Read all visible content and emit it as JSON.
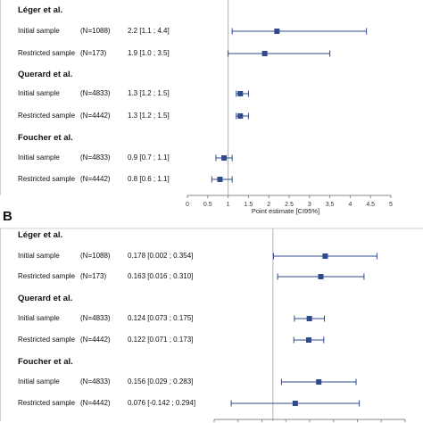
{
  "chart_data": [
    {
      "panel_letter": "",
      "type": "forest",
      "xlabel": "Point estimate [CI95%]",
      "xlim": [
        0,
        5
      ],
      "xticks": [
        "0",
        "0.5",
        "1",
        "1.5",
        "2",
        "2.5",
        "3",
        "3.5",
        "4",
        "4.5",
        "5"
      ],
      "reference_line": 1,
      "groups": [
        {
          "name": "Léger et al.",
          "rows": [
            {
              "label": "Initial sample",
              "n": "(N=1088)",
              "estimate_text": "2.2 [1.1 ; 4.4]",
              "estimate": 2.2,
              "ci": [
                1.1,
                4.4
              ]
            },
            {
              "label": "Restricted sample",
              "n": "(N=173)",
              "estimate_text": "1.9 [1.0 ; 3.5]",
              "estimate": 1.9,
              "ci": [
                1.0,
                3.5
              ]
            }
          ]
        },
        {
          "name": "Querard et al.",
          "rows": [
            {
              "label": "Initial sample",
              "n": "(N=4833)",
              "estimate_text": "1.3 [1.2 ; 1.5]",
              "estimate": 1.3,
              "ci": [
                1.2,
                1.5
              ]
            },
            {
              "label": "Restricted sample",
              "n": "(N=4442)",
              "estimate_text": "1.3 [1.2 ; 1.5]",
              "estimate": 1.3,
              "ci": [
                1.2,
                1.5
              ]
            }
          ]
        },
        {
          "name": "Foucher et al.",
          "rows": [
            {
              "label": "Initial sample",
              "n": "(N=4833)",
              "estimate_text": "0.9 [0.7 ; 1.1]",
              "estimate": 0.9,
              "ci": [
                0.7,
                1.1
              ]
            },
            {
              "label": "Restricted sample",
              "n": "(N=4442)",
              "estimate_text": "0.8 [0.6 ; 1.1]",
              "estimate": 0.8,
              "ci": [
                0.6,
                1.1
              ]
            }
          ]
        }
      ]
    },
    {
      "panel_letter": "B",
      "type": "forest",
      "xlabel": "",
      "xlim": [
        -0.2,
        0.45
      ],
      "xticks": [],
      "reference_line": 0,
      "groups": [
        {
          "name": "Léger et al.",
          "rows": [
            {
              "label": "Initial sample",
              "n": "(N=1088)",
              "estimate_text": "0.178 [0.002 ; 0.354]",
              "estimate": 0.178,
              "ci": [
                0.002,
                0.354
              ]
            },
            {
              "label": "Restricted sample",
              "n": "(N=173)",
              "estimate_text": "0.163 [0.016 ; 0.310]",
              "estimate": 0.163,
              "ci": [
                0.016,
                0.31
              ]
            }
          ]
        },
        {
          "name": "Querard et al.",
          "rows": [
            {
              "label": "Initial sample",
              "n": "(N=4833)",
              "estimate_text": "0.124 [0.073 ; 0.175]",
              "estimate": 0.124,
              "ci": [
                0.073,
                0.175
              ]
            },
            {
              "label": "Restricted sample",
              "n": "(N=4442)",
              "estimate_text": "0.122 [0.071 ; 0.173]",
              "estimate": 0.122,
              "ci": [
                0.071,
                0.173
              ]
            }
          ]
        },
        {
          "name": "Foucher et al.",
          "rows": [
            {
              "label": "Initial sample",
              "n": "(N=4833)",
              "estimate_text": "0.156 [0.029 ; 0.283]",
              "estimate": 0.156,
              "ci": [
                0.029,
                0.283
              ]
            },
            {
              "label": "Restricted sample",
              "n": "(N=4442)",
              "estimate_text": "0.076 [-0.142 ; 0.294]",
              "estimate": 0.076,
              "ci": [
                -0.142,
                0.294
              ]
            }
          ]
        }
      ]
    }
  ],
  "colors": {
    "marker": "#2e4a8c",
    "ci_line": "#2e4a8c",
    "axis": "#888888",
    "reference": "#b0b0b0"
  }
}
